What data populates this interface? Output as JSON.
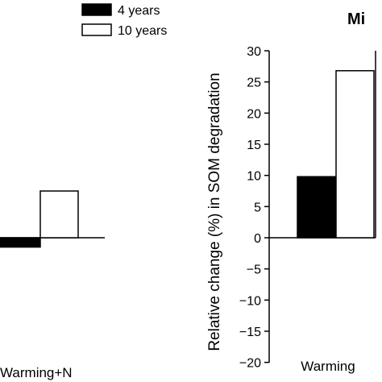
{
  "chart_data": [
    {
      "type": "bar",
      "title": "",
      "categories": [
        "Warming+N"
      ],
      "series": [
        {
          "name": "4 years",
          "values": [
            -1.5
          ],
          "color": "#000000"
        },
        {
          "name": "10 years",
          "values": [
            7.5
          ],
          "color": "#ffffff"
        }
      ],
      "ylim": [
        -20,
        30
      ]
    },
    {
      "type": "bar",
      "title": "Mi",
      "ylabel": "Relative change (%) in SOM degradation",
      "categories": [
        "Warming"
      ],
      "series": [
        {
          "name": "4 years",
          "values": [
            9.8
          ],
          "color": "#000000"
        },
        {
          "name": "10 years",
          "values": [
            26.8
          ],
          "color": "#ffffff"
        }
      ],
      "ylim": [
        -20,
        30
      ],
      "yticks": [
        30,
        25,
        20,
        15,
        10,
        5,
        0,
        -5,
        -10,
        -15,
        -20
      ],
      "ytick_labels": [
        "30",
        "25",
        "20",
        "15",
        "10",
        "5",
        "0",
        "−5",
        "−10",
        "−15",
        "−20"
      ]
    }
  ],
  "legend": {
    "items": [
      {
        "label": "4 years",
        "fill": "#000000"
      },
      {
        "label": "10 years",
        "fill": "#ffffff"
      }
    ]
  }
}
